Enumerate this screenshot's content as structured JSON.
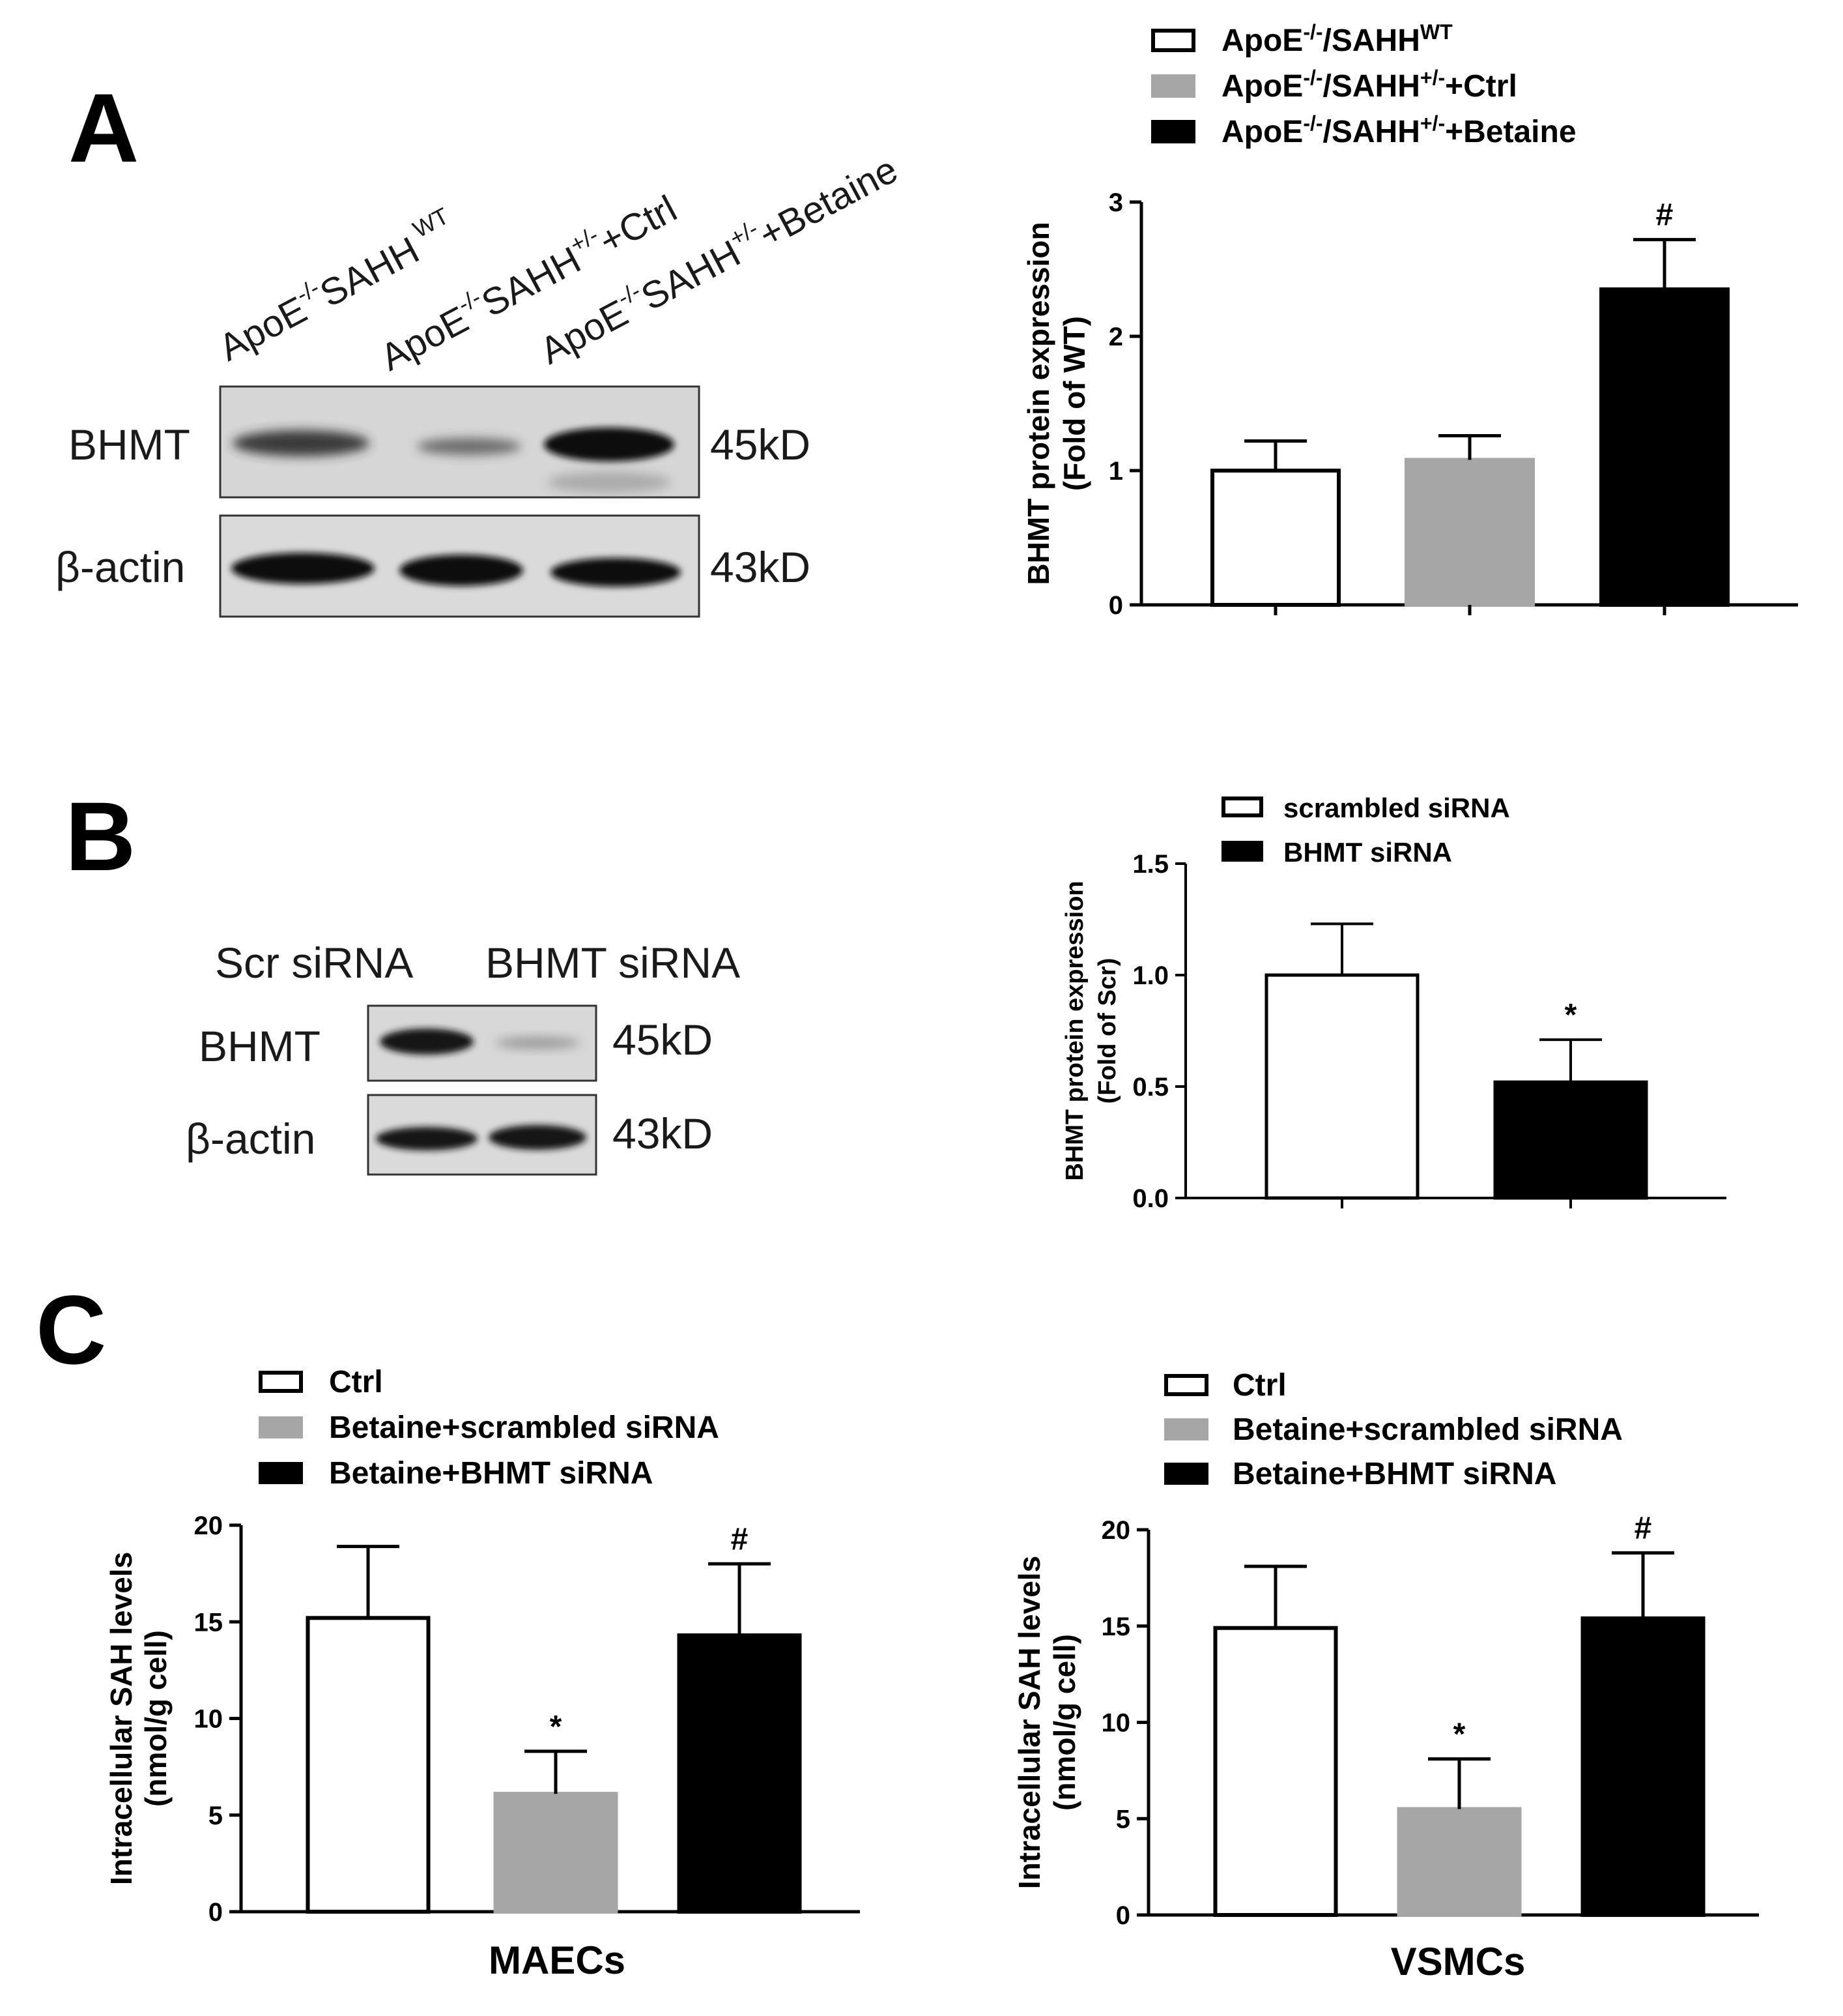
{
  "panels": {
    "A": "A",
    "B": "B",
    "C": "C"
  },
  "blot_a": {
    "lanes": [
      {
        "base": "ApoE",
        "sup": "-/-",
        "mid": "SAHH",
        "sup2": " WT",
        "tail": ""
      },
      {
        "base": "ApoE",
        "sup": "-/-",
        "mid": "SAHH",
        "sup2": "+/-",
        "tail": "+Ctrl"
      },
      {
        "base": "ApoE",
        "sup": "-/-",
        "mid": "SAHH",
        "sup2": "+/-",
        "tail": "+Betaine"
      }
    ],
    "rows": [
      {
        "label": "BHMT",
        "kd": "45kD"
      },
      {
        "label": "β-actin",
        "kd": "43kD"
      }
    ]
  },
  "blot_b": {
    "lanes": [
      "Scr siRNA",
      "BHMT siRNA"
    ],
    "rows": [
      {
        "label": "BHMT",
        "kd": "45kD"
      },
      {
        "label": "β-actin",
        "kd": "43kD"
      }
    ]
  },
  "chart_data": [
    {
      "type": "bar",
      "panel": "A",
      "ylabel": "BHMT protein expression",
      "ylabel2": "(Fold of WT)",
      "xlabel": "",
      "ylim": [
        0,
        3
      ],
      "yticks": [
        0,
        1,
        2,
        3
      ],
      "legend_placement": "top",
      "series": [
        {
          "name": {
            "base": "ApoE",
            "sup": "-/-",
            "mid": "/SAHH",
            "sup2": "WT",
            "tail": ""
          },
          "value": 1.0,
          "error": 0.22,
          "fill": "#ffffff",
          "sig": ""
        },
        {
          "name": {
            "base": "ApoE",
            "sup": "-/-",
            "mid": "/SAHH",
            "sup2": "+/-",
            "tail": "+Ctrl"
          },
          "value": 1.08,
          "error": 0.18,
          "fill": "#a6a6a6",
          "sig": ""
        },
        {
          "name": {
            "base": "ApoE",
            "sup": "-/-",
            "mid": "/SAHH",
            "sup2": "+/-",
            "tail": "+Betaine"
          },
          "value": 2.35,
          "error": 0.37,
          "fill": "#000000",
          "sig": "#"
        }
      ]
    },
    {
      "type": "bar",
      "panel": "B",
      "ylabel": "BHMT protein expression",
      "ylabel2": "(Fold of Scr)",
      "xlabel": "",
      "ylim": [
        0,
        1.5
      ],
      "yticks": [
        "0.0",
        "0.5",
        "1.0",
        "1.5"
      ],
      "legend_placement": "top",
      "series": [
        {
          "name": "scrambled siRNA",
          "value": 1.0,
          "error": 0.23,
          "fill": "#ffffff",
          "sig": ""
        },
        {
          "name": "BHMT siRNA",
          "value": 0.52,
          "error": 0.19,
          "fill": "#000000",
          "sig": "*"
        }
      ]
    },
    {
      "type": "bar",
      "panel": "C",
      "ylabel": "Intracellular SAH levels",
      "ylabel2": "(nmol/g cell)",
      "xlabel": "MAECs",
      "ylim": [
        0,
        20
      ],
      "yticks": [
        0,
        5,
        10,
        15,
        20
      ],
      "legend_placement": "top",
      "series": [
        {
          "name": "Ctrl",
          "value": 15.2,
          "error": 3.7,
          "fill": "#ffffff",
          "sig": ""
        },
        {
          "name": "Betaine+scrambled siRNA",
          "value": 6.1,
          "error": 2.2,
          "fill": "#a6a6a6",
          "sig": "*"
        },
        {
          "name": "Betaine+BHMT siRNA",
          "value": 14.3,
          "error": 3.7,
          "fill": "#000000",
          "sig": "#"
        }
      ]
    },
    {
      "type": "bar",
      "panel": "C",
      "ylabel": "Intracellular SAH levels",
      "ylabel2": "(nmol/g cell)",
      "xlabel": "VSMCs",
      "ylim": [
        0,
        20
      ],
      "yticks": [
        0,
        5,
        10,
        15,
        20
      ],
      "legend_placement": "top",
      "series": [
        {
          "name": "Ctrl",
          "value": 14.9,
          "error": 3.2,
          "fill": "#ffffff",
          "sig": ""
        },
        {
          "name": "Betaine+scrambled siRNA",
          "value": 5.5,
          "error": 2.6,
          "fill": "#a6a6a6",
          "sig": "*"
        },
        {
          "name": "Betaine+BHMT siRNA",
          "value": 15.4,
          "error": 3.4,
          "fill": "#000000",
          "sig": "#"
        }
      ]
    }
  ]
}
